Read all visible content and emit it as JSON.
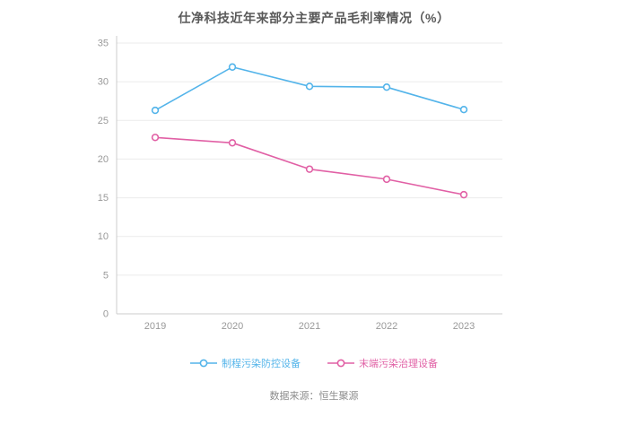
{
  "title": "仕净科技近年来部分主要产品毛利率情况（%）",
  "source": "数据来源：恒生聚源",
  "chart_data": {
    "type": "line",
    "categories": [
      "2019",
      "2020",
      "2021",
      "2022",
      "2023"
    ],
    "series": [
      {
        "name": "制程污染防控设备",
        "color": "#53B4EA",
        "values": [
          26.3,
          31.9,
          29.4,
          29.3,
          26.4
        ]
      },
      {
        "name": "末端污染治理设备",
        "color": "#E160A5",
        "values": [
          22.8,
          22.1,
          18.7,
          17.4,
          15.4
        ]
      }
    ],
    "ylim": [
      0,
      35
    ],
    "ytick_step": 5,
    "grid": true,
    "legend_position": "bottom",
    "axis_color": "#cccccc",
    "grid_color": "#ebebeb",
    "tick_label_color": "#999999"
  }
}
